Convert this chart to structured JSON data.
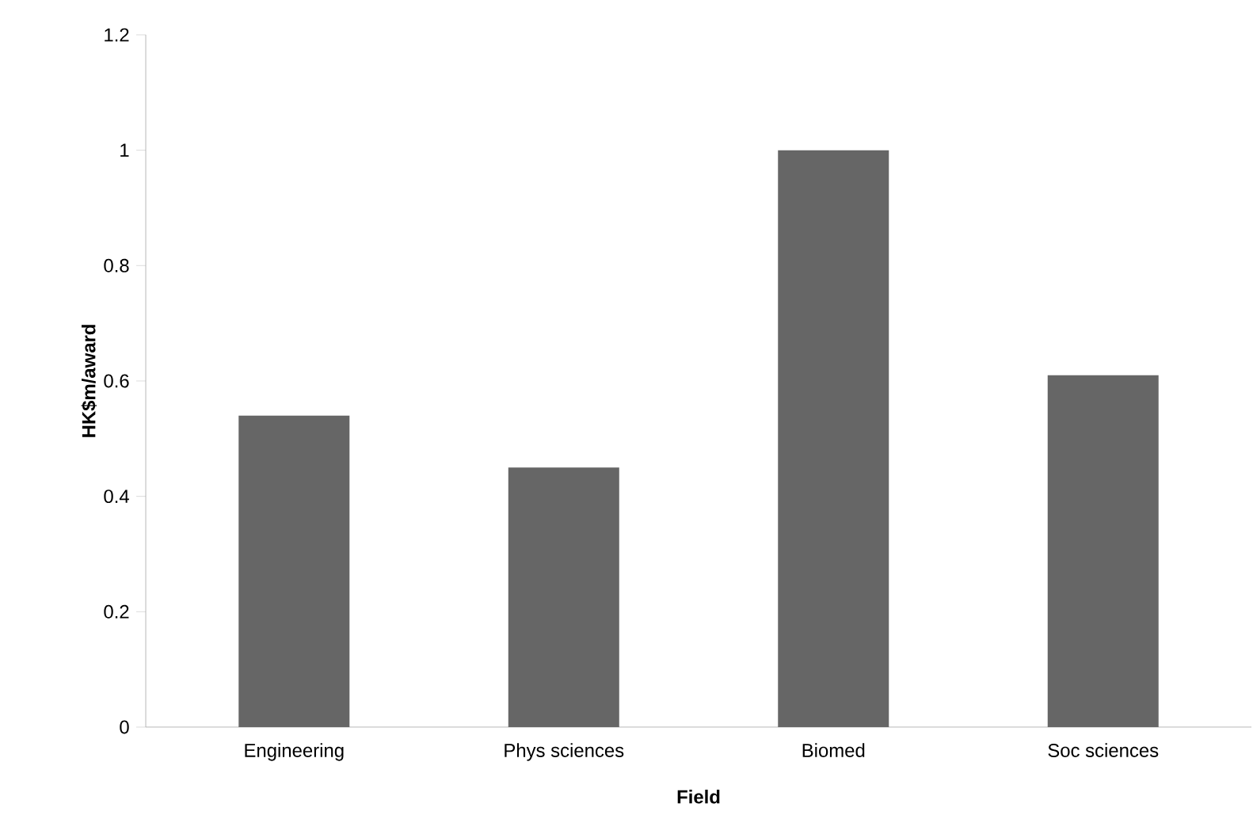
{
  "chart_data": {
    "type": "bar",
    "categories": [
      "Engineering",
      "Phys sciences",
      "Biomed",
      "Soc sciences"
    ],
    "values": [
      0.54,
      0.45,
      1.0,
      0.61
    ],
    "color": "#666666",
    "xlabel": "Field",
    "ylabel": "HK$m/award",
    "ylim": [
      0,
      1.2
    ],
    "yticks": [
      0,
      0.2,
      0.4,
      0.6,
      0.8,
      1,
      1.2
    ],
    "grid": false
  }
}
